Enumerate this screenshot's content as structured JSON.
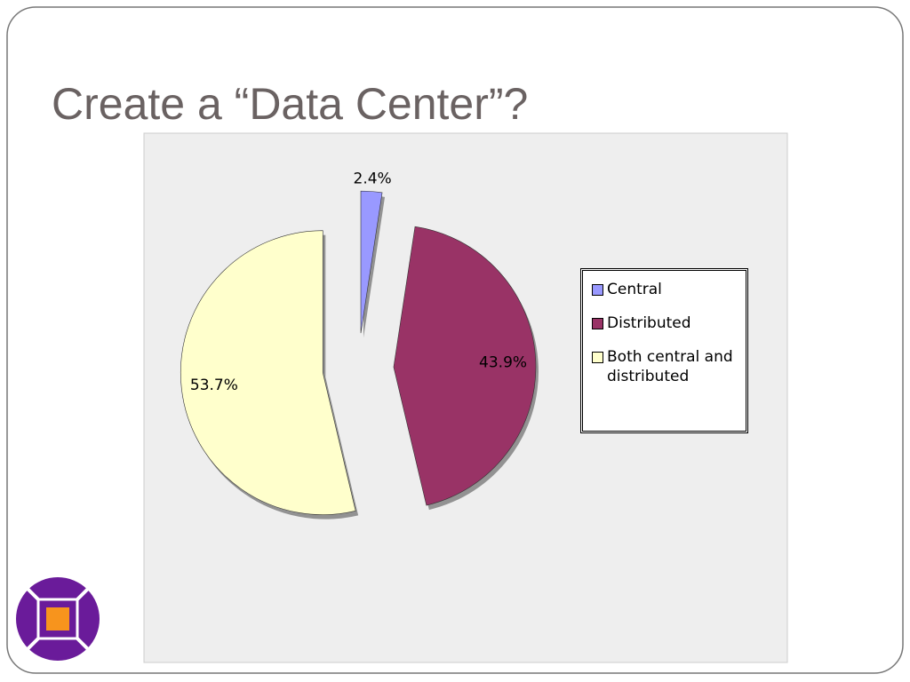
{
  "chart_data": {
    "type": "pie",
    "title": "Create a “Data Center”?",
    "categories": [
      "Central",
      "Distributed",
      "Both central and distributed"
    ],
    "values": [
      2.4,
      43.9,
      53.7
    ],
    "value_labels": [
      "2.4%",
      "43.9%",
      "53.7%"
    ],
    "colors": [
      "#9999ff",
      "#993366",
      "#ffffcc"
    ],
    "legend": "right"
  }
}
